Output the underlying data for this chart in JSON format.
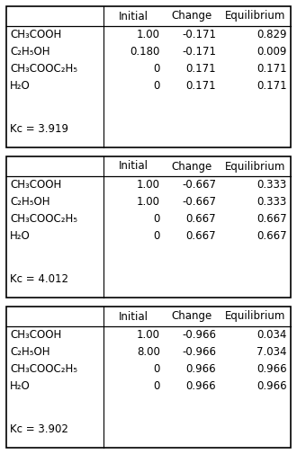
{
  "tables": [
    {
      "header": [
        "",
        "Initial",
        "Change",
        "Equilibrium"
      ],
      "rows": [
        [
          "CH₃COOH",
          "1.00",
          "-0.171",
          "0.829"
        ],
        [
          "C₂H₅OH",
          "0.180",
          "-0.171",
          "0.009"
        ],
        [
          "CH₃COOC₂H₅",
          "0",
          "0.171",
          "0.171"
        ],
        [
          "H₂O",
          "0",
          "0.171",
          "0.171"
        ]
      ],
      "kc": "Kc = 3.919"
    },
    {
      "header": [
        "",
        "Initial",
        "Change",
        "Equilibrium"
      ],
      "rows": [
        [
          "CH₃COOH",
          "1.00",
          "-0.667",
          "0.333"
        ],
        [
          "C₂H₅OH",
          "1.00",
          "-0.667",
          "0.333"
        ],
        [
          "CH₃COOC₂H₅",
          "0",
          "0.667",
          "0.667"
        ],
        [
          "H₂O",
          "0",
          "0.667",
          "0.667"
        ]
      ],
      "kc": "Kc = 4.012"
    },
    {
      "header": [
        "",
        "Initial",
        "Change",
        "Equilibrium"
      ],
      "rows": [
        [
          "CH₃COOH",
          "1.00",
          "-0.966",
          "0.034"
        ],
        [
          "C₂H₅OH",
          "8.00",
          "-0.966",
          "7.034"
        ],
        [
          "CH₃COOC₂H₅",
          "0",
          "0.966",
          "0.966"
        ],
        [
          "H₂O",
          "0",
          "0.966",
          "0.966"
        ]
      ],
      "kc": "Kc = 3.902"
    }
  ],
  "bg_color": "#ffffff",
  "border_color": "#000000",
  "header_fontsize": 8.5,
  "body_fontsize": 8.5,
  "kc_fontsize": 8.5
}
